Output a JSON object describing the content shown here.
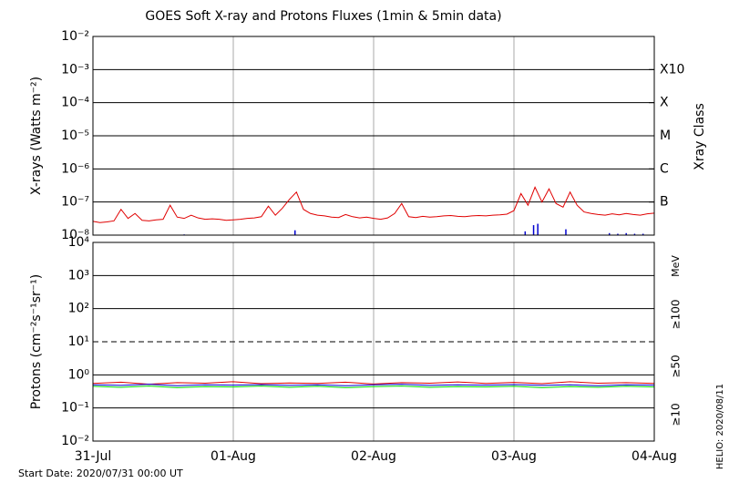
{
  "chart_data": [
    {
      "type": "line",
      "title": "GOES Soft X-ray and Protons Fluxes   (1min & 5min data)",
      "ylabel": "X-rays (Watts m⁻²)",
      "y2label": "Xray Class",
      "log_y": true,
      "grid": true,
      "xlim": [
        0,
        4
      ],
      "xticks": [
        0,
        1,
        2,
        3,
        4
      ],
      "ylim": [
        1e-08,
        0.01
      ],
      "yticks": [
        {
          "value": 1e-08,
          "label": "10⁻⁸"
        },
        {
          "value": 1e-07,
          "label": "10⁻⁷"
        },
        {
          "value": 1e-06,
          "label": "10⁻⁶"
        },
        {
          "value": 1e-05,
          "label": "10⁻⁵"
        },
        {
          "value": 0.0001,
          "label": "10⁻⁴"
        },
        {
          "value": 0.001,
          "label": "10⁻³"
        },
        {
          "value": 0.01,
          "label": "10⁻²"
        }
      ],
      "y2ticks": [
        {
          "value": 0.001,
          "label": "X10"
        },
        {
          "value": 0.0001,
          "label": "X"
        },
        {
          "value": 1e-05,
          "label": "M"
        },
        {
          "value": 1e-06,
          "label": "C"
        },
        {
          "value": 1e-07,
          "label": "B"
        }
      ],
      "series": [
        {
          "color": "#e00000",
          "style": "line",
          "x": [
            0,
            0.05,
            0.1,
            0.15,
            0.2,
            0.25,
            0.3,
            0.35,
            0.4,
            0.45,
            0.5,
            0.55,
            0.6,
            0.65,
            0.7,
            0.75,
            0.8,
            0.85,
            0.9,
            0.95,
            1,
            1.05,
            1.1,
            1.15,
            1.2,
            1.25,
            1.3,
            1.35,
            1.4,
            1.45,
            1.5,
            1.55,
            1.6,
            1.65,
            1.7,
            1.75,
            1.8,
            1.85,
            1.9,
            1.95,
            2,
            2.05,
            2.1,
            2.15,
            2.2,
            2.25,
            2.3,
            2.35,
            2.4,
            2.45,
            2.5,
            2.55,
            2.6,
            2.65,
            2.7,
            2.75,
            2.8,
            2.85,
            2.9,
            2.95,
            3,
            3.05,
            3.1,
            3.15,
            3.2,
            3.25,
            3.3,
            3.35,
            3.4,
            3.45,
            3.5,
            3.55,
            3.6,
            3.65,
            3.7,
            3.75,
            3.8,
            3.85,
            3.9,
            3.95,
            4
          ],
          "values": [
            2.6e-08,
            2.4e-08,
            2.5e-08,
            2.7e-08,
            6e-08,
            3.2e-08,
            4.5e-08,
            2.8e-08,
            2.7e-08,
            2.9e-08,
            3e-08,
            8e-08,
            3.5e-08,
            3.2e-08,
            4e-08,
            3.3e-08,
            3e-08,
            3.1e-08,
            3e-08,
            2.8e-08,
            2.9e-08,
            3e-08,
            3.2e-08,
            3.3e-08,
            3.6e-08,
            7.5e-08,
            4e-08,
            6.5e-08,
            1.2e-07,
            2e-07,
            6e-08,
            4.5e-08,
            4e-08,
            3.8e-08,
            3.5e-08,
            3.4e-08,
            4.2e-08,
            3.6e-08,
            3.3e-08,
            3.5e-08,
            3.2e-08,
            3e-08,
            3.3e-08,
            4.5e-08,
            9e-08,
            3.6e-08,
            3.4e-08,
            3.7e-08,
            3.5e-08,
            3.6e-08,
            3.8e-08,
            3.9e-08,
            3.7e-08,
            3.6e-08,
            3.8e-08,
            3.9e-08,
            3.8e-08,
            4e-08,
            4.1e-08,
            4.3e-08,
            5.5e-08,
            1.8e-07,
            8e-08,
            2.8e-07,
            1e-07,
            2.5e-07,
            9e-08,
            7e-08,
            2e-07,
            8e-08,
            5e-08,
            4.5e-08,
            4.2e-08,
            4e-08,
            4.4e-08,
            4.1e-08,
            4.5e-08,
            4.2e-08,
            4e-08,
            4.4e-08,
            4.6e-08
          ]
        },
        {
          "color": "#0000d0",
          "style": "spikes",
          "x": [
            0.65,
            1.44,
            3.08,
            3.14,
            3.17,
            3.37,
            3.68,
            3.74,
            3.8,
            3.86,
            3.92
          ],
          "values": [
            1.05e-08,
            1.4e-08,
            1.3e-08,
            2e-08,
            2.2e-08,
            1.5e-08,
            1.15e-08,
            1.1e-08,
            1.15e-08,
            1.1e-08,
            1.1e-08
          ]
        }
      ]
    },
    {
      "type": "line",
      "ylabel": "Protons (cm⁻²s⁻¹sr⁻¹)",
      "legend_title": "MeV",
      "log_y": true,
      "grid": true,
      "dashed_gridline": 10,
      "xlim": [
        0,
        4
      ],
      "xticks": [
        {
          "value": 0,
          "label": "31-Jul"
        },
        {
          "value": 1,
          "label": "01-Aug"
        },
        {
          "value": 2,
          "label": "02-Aug"
        },
        {
          "value": 3,
          "label": "03-Aug"
        },
        {
          "value": 4,
          "label": "04-Aug"
        }
      ],
      "ylim": [
        0.01,
        10000.0
      ],
      "yticks": [
        {
          "value": 0.01,
          "label": "10⁻²"
        },
        {
          "value": 0.1,
          "label": "10⁻¹"
        },
        {
          "value": 1,
          "label": "10⁰"
        },
        {
          "value": 10,
          "label": "10¹"
        },
        {
          "value": 100,
          "label": "10²"
        },
        {
          "value": 1000,
          "label": "10³"
        },
        {
          "value": 10000,
          "label": "10⁴"
        }
      ],
      "series": [
        {
          "name": "≥10",
          "color": "#e00000",
          "style": "line",
          "x": [
            0,
            0.2,
            0.4,
            0.6,
            0.8,
            1,
            1.2,
            1.4,
            1.6,
            1.8,
            2,
            2.2,
            2.4,
            2.6,
            2.8,
            3,
            3.2,
            3.4,
            3.6,
            3.8,
            4
          ],
          "values": [
            0.55,
            0.6,
            0.52,
            0.58,
            0.56,
            0.62,
            0.54,
            0.57,
            0.55,
            0.6,
            0.53,
            0.58,
            0.56,
            0.61,
            0.55,
            0.59,
            0.54,
            0.62,
            0.56,
            0.58,
            0.55
          ]
        },
        {
          "name": "≥50",
          "color": "#0000d0",
          "style": "line",
          "x": [
            0,
            0.2,
            0.4,
            0.6,
            0.8,
            1,
            1.2,
            1.4,
            1.6,
            1.8,
            2,
            2.2,
            2.4,
            2.6,
            2.8,
            3,
            3.2,
            3.4,
            3.6,
            3.8,
            4
          ],
          "values": [
            0.5,
            0.48,
            0.52,
            0.47,
            0.5,
            0.49,
            0.51,
            0.48,
            0.5,
            0.47,
            0.5,
            0.52,
            0.48,
            0.5,
            0.49,
            0.51,
            0.48,
            0.5,
            0.47,
            0.5,
            0.49
          ]
        },
        {
          "name": "≥100",
          "color": "#00dd00",
          "style": "line",
          "x": [
            0,
            0.2,
            0.4,
            0.6,
            0.8,
            1,
            1.2,
            1.4,
            1.6,
            1.8,
            2,
            2.2,
            2.4,
            2.6,
            2.8,
            3,
            3.2,
            3.4,
            3.6,
            3.8,
            4
          ],
          "values": [
            0.45,
            0.42,
            0.46,
            0.41,
            0.44,
            0.43,
            0.46,
            0.42,
            0.45,
            0.41,
            0.44,
            0.46,
            0.42,
            0.44,
            0.43,
            0.45,
            0.41,
            0.44,
            0.42,
            0.45,
            0.43
          ]
        }
      ]
    }
  ],
  "footer": {
    "start_date": "Start Date: 2020/07/31 00:00 UT",
    "helio": "HELIO: 2020/08/11"
  }
}
